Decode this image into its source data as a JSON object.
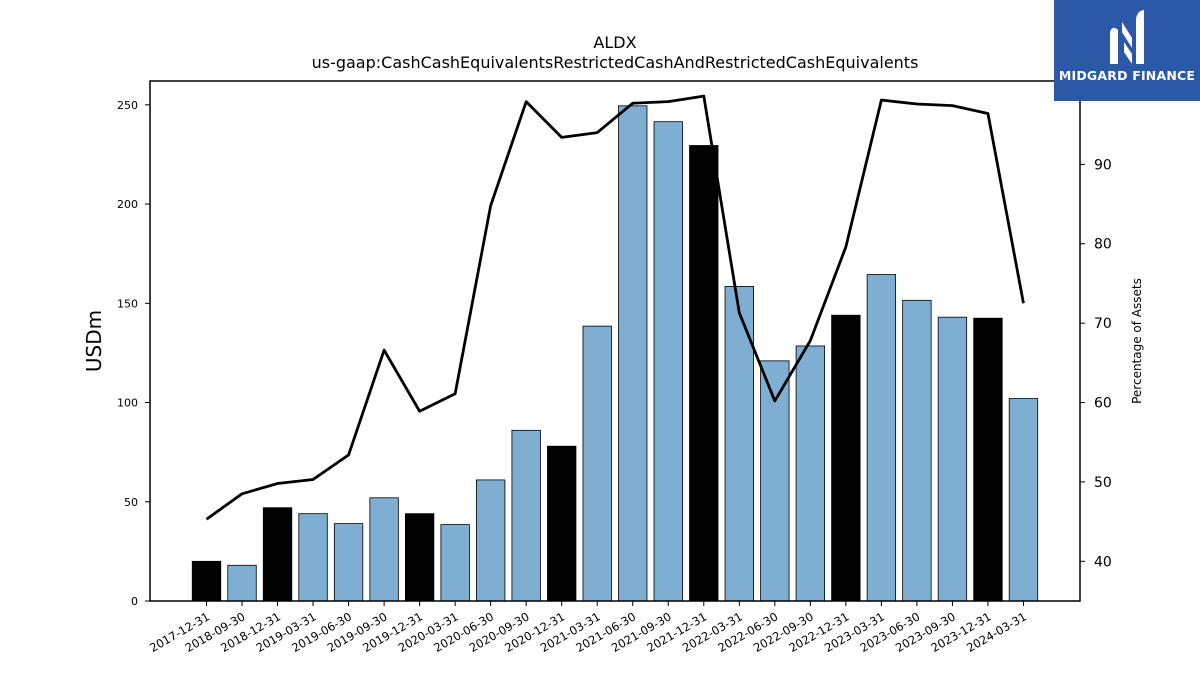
{
  "chart_data": {
    "type": "bar",
    "title": "ALDX",
    "subtitle": "us-gaap:CashCashEquivalentsRestrictedCashAndRestrictedCashEquivalents",
    "ylabel": "USDm",
    "y2label": "Percentage of Assets",
    "ylim": [
      0,
      262
    ],
    "y2lim": [
      35,
      100.5
    ],
    "yticks": [
      0,
      50,
      100,
      150,
      200,
      250
    ],
    "y2ticks": [
      40,
      50,
      60,
      70,
      80,
      90
    ],
    "categories": [
      "2017-12-31",
      "2018-09-30",
      "2018-12-31",
      "2019-03-31",
      "2019-06-30",
      "2019-09-30",
      "2019-12-31",
      "2020-03-31",
      "2020-06-30",
      "2020-09-30",
      "2020-12-31",
      "2021-03-31",
      "2021-06-30",
      "2021-09-30",
      "2021-12-31",
      "2022-03-31",
      "2022-06-30",
      "2022-09-30",
      "2022-12-31",
      "2023-03-31",
      "2023-06-30",
      "2023-09-30",
      "2023-12-31",
      "2024-03-31"
    ],
    "values": [
      20,
      18,
      47,
      44,
      39,
      52,
      44,
      38.5,
      61,
      86,
      78,
      138.5,
      249.5,
      241.5,
      229.5,
      158.5,
      121,
      128.5,
      144,
      164.5,
      151.5,
      143,
      142.5,
      102
    ],
    "fiscal_year_end": [
      true,
      false,
      true,
      false,
      false,
      false,
      true,
      false,
      false,
      false,
      true,
      false,
      false,
      false,
      true,
      false,
      false,
      false,
      true,
      false,
      false,
      false,
      true,
      false
    ],
    "pct_of_assets": [
      45.3,
      48.5,
      49.8,
      50.3,
      53.4,
      66.6,
      58.9,
      61.1,
      84.8,
      97.9,
      93.4,
      94.0,
      97.7,
      97.9,
      98.6,
      71.3,
      60.2,
      67.8,
      79.6,
      98.1,
      97.6,
      97.4,
      96.4,
      72.5
    ],
    "colors": {
      "bar": "#7eafd3",
      "bar_year_end": "#000000",
      "line": "#000000"
    }
  },
  "logo": {
    "text": "MIDGARD FINANCE"
  }
}
